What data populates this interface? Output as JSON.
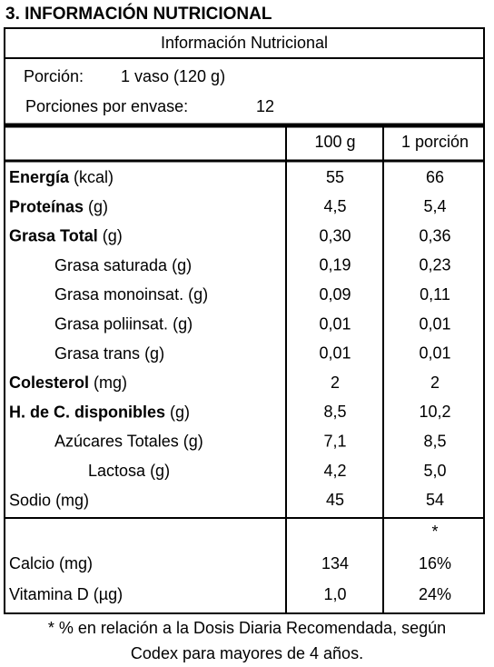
{
  "heading": "3. INFORMACIÓN NUTRICIONAL",
  "table": {
    "title": "Información Nutricional",
    "portion": {
      "label": "Porción:",
      "value": "1 vaso (120 g)"
    },
    "servings": {
      "label": "Porciones por envase:",
      "value": "12"
    },
    "columns": [
      "100 g",
      "1 porción"
    ],
    "rows": [
      {
        "name": "Energía",
        "unit": "(kcal)",
        "bold": true,
        "indent": 0,
        "values": [
          "55",
          "66"
        ]
      },
      {
        "name": "Proteínas",
        "unit": "(g)",
        "bold": true,
        "indent": 0,
        "values": [
          "4,5",
          "5,4"
        ]
      },
      {
        "name": "Grasa Total",
        "unit": "(g)",
        "bold": true,
        "indent": 0,
        "values": [
          "0,30",
          "0,36"
        ]
      },
      {
        "name": "Grasa saturada",
        "unit": "(g)",
        "bold": false,
        "indent": 1,
        "values": [
          "0,19",
          "0,23"
        ]
      },
      {
        "name": "Grasa monoinsat.",
        "unit": "(g)",
        "bold": false,
        "indent": 1,
        "values": [
          "0,09",
          "0,11"
        ]
      },
      {
        "name": "Grasa poliinsat.",
        "unit": "(g)",
        "bold": false,
        "indent": 1,
        "values": [
          "0,01",
          "0,01"
        ]
      },
      {
        "name": "Grasa trans",
        "unit": "(g)",
        "bold": false,
        "indent": 1,
        "values": [
          "0,01",
          "0,01"
        ]
      },
      {
        "name": "Colesterol",
        "unit": "(mg)",
        "bold": true,
        "indent": 0,
        "values": [
          "2",
          "2"
        ]
      },
      {
        "name": "H. de C. disponibles",
        "unit": "(g)",
        "bold": true,
        "indent": 0,
        "values": [
          "8,5",
          "10,2"
        ]
      },
      {
        "name": "Azúcares Totales",
        "unit": "(g)",
        "bold": false,
        "indent": 1,
        "values": [
          "7,1",
          "8,5"
        ]
      },
      {
        "name": "Lactosa",
        "unit": "(g)",
        "bold": false,
        "indent": 2,
        "values": [
          "4,2",
          "5,0"
        ]
      },
      {
        "name": "Sodio",
        "unit": "(mg)",
        "bold": false,
        "indent": 0,
        "values": [
          "45",
          "54"
        ]
      }
    ],
    "marker": "*",
    "extra_rows": [
      {
        "name": "Calcio",
        "unit": "(mg)",
        "bold": false,
        "indent": 0,
        "values": [
          "134",
          "16%"
        ]
      },
      {
        "name": "Vitamina D",
        "unit": "(µg)",
        "bold": false,
        "indent": 0,
        "values": [
          "1,0",
          "24%"
        ]
      }
    ]
  },
  "footnote": [
    "* % en relación a la Dosis Diaria Recomendada, según",
    "Codex para mayores de 4 años."
  ]
}
